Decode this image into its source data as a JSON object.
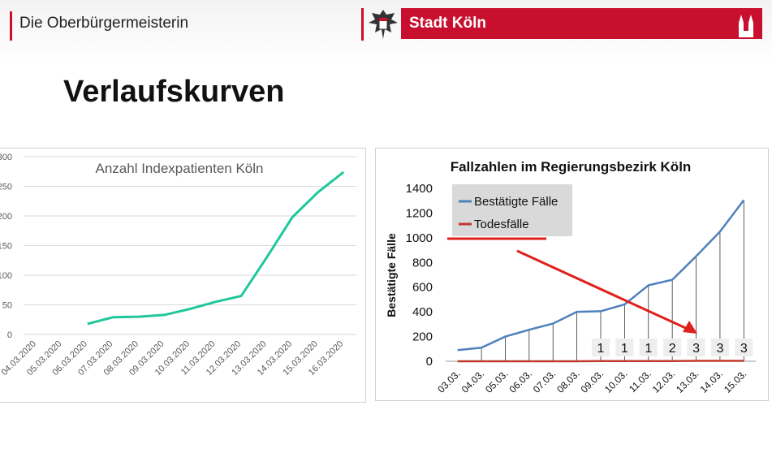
{
  "header": {
    "office": "Die Oberbürgermeisterin",
    "city": "Stadt Köln"
  },
  "page": {
    "title": "Verlaufskurven"
  },
  "colors": {
    "brand_red": "#c8102e",
    "left_line": "#1fc79a",
    "right_line": "#4f81bd",
    "deaths_line": "#c0392b",
    "arrow": "#e0201b"
  },
  "chart_data": [
    {
      "type": "line",
      "title": "Anzahl Indexpatienten Köln",
      "xlabel": "",
      "ylabel": "",
      "ylim": [
        0,
        300
      ],
      "yticks": [
        "0",
        "50",
        "100",
        "150",
        "200",
        "250",
        "300"
      ],
      "categories": [
        "04.03.2020",
        "05.03.2020",
        "06.03.2020",
        "07.03.2020",
        "08.03.2020",
        "09.03.2020",
        "10.03.2020",
        "11.03.2020",
        "12.03.2020",
        "13.03.2020",
        "14.03.2020",
        "15.03.2020",
        "16.03.2020"
      ],
      "series": [
        {
          "values": [
            null,
            null,
            18,
            29,
            30,
            33,
            43,
            55,
            65,
            130,
            198,
            240,
            274
          ]
        }
      ],
      "grid": true,
      "legend": "none"
    },
    {
      "type": "line",
      "title": "Fallzahlen im Regierungsbezirk Köln",
      "xlabel": "",
      "ylabel": "Bestätigte Fälle",
      "ylim": [
        0,
        1400
      ],
      "yticks": [
        "0",
        "200",
        "400",
        "600",
        "800",
        "1000",
        "1200",
        "1400"
      ],
      "categories": [
        "03.03.",
        "04.03.",
        "05.03.",
        "06.03.",
        "07.03.",
        "08.03.",
        "09.03.",
        "10.03.",
        "11.03.",
        "12.03.",
        "13.03.",
        "14.03.",
        "15.03."
      ],
      "series": [
        {
          "name": "Bestätigte Fälle",
          "values": [
            90,
            110,
            200,
            255,
            305,
            400,
            405,
            460,
            615,
            660,
            850,
            1050,
            1305
          ]
        },
        {
          "name": "Todesfälle",
          "values": [
            0,
            0,
            0,
            0,
            0,
            0,
            1,
            1,
            1,
            2,
            3,
            3,
            3
          ]
        }
      ],
      "death_labels": [
        "1",
        "1",
        "1",
        "2",
        "3",
        "3",
        "3"
      ],
      "grid": false,
      "legend": "top-left"
    }
  ]
}
